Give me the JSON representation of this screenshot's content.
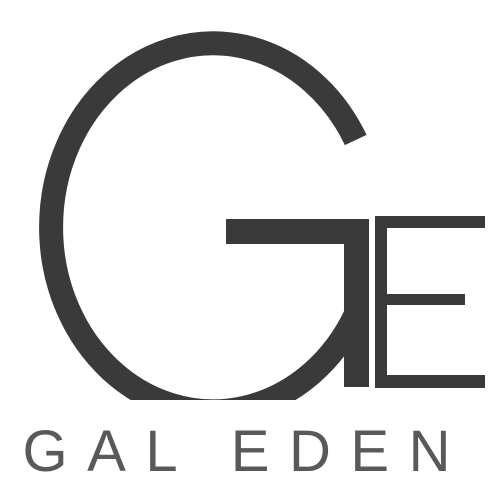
{
  "brand": {
    "monogram": "GE",
    "wordmark": "GAL EDEN"
  },
  "colors": {
    "ink": "#3a3a3a",
    "wordmark": "#595959",
    "background": "#ffffff"
  }
}
